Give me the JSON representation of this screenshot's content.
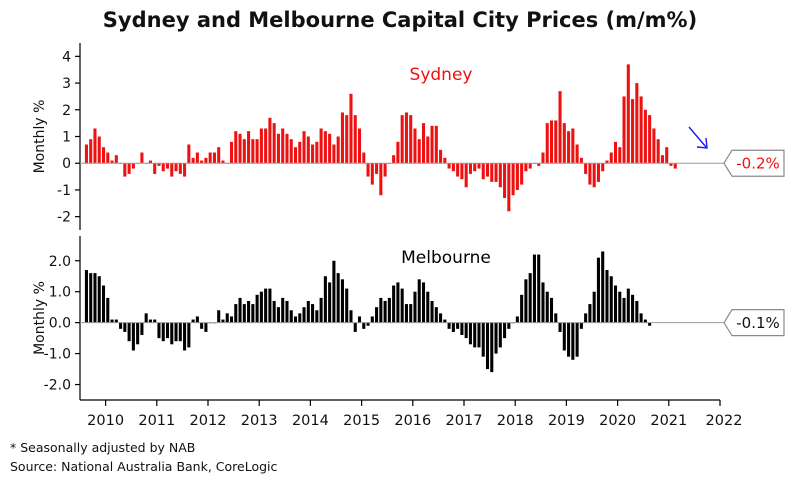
{
  "title": "Sydney and Melbourne Capital City Prices (m/m%)",
  "footnotes": [
    "* Seasonally adjusted by NAB",
    "Source: National Australia Bank, CoreLogic"
  ],
  "colors": {
    "sydney": "#ee1111",
    "melbourne": "#000000",
    "arrow": "#1a1aee",
    "axis": "#000000",
    "zero_line": "#9a9a9a"
  },
  "chart_data": [
    {
      "type": "bar",
      "series_name": "Sydney",
      "ylabel": "Monthly %",
      "ylim": [
        -2.5,
        4.5
      ],
      "yticks": [
        -2,
        -1,
        0,
        1,
        2,
        3,
        4
      ],
      "ytick_labels": [
        "-2",
        "-1",
        "0",
        "1",
        "2",
        "3",
        "4"
      ],
      "x_start": "2009-08",
      "latest_value_label": "-0.2%",
      "values": [
        0.7,
        0.9,
        1.3,
        1.0,
        0.6,
        0.4,
        0.1,
        0.3,
        0.0,
        -0.5,
        -0.4,
        -0.2,
        0.0,
        0.4,
        0.0,
        0.1,
        -0.4,
        -0.1,
        -0.3,
        -0.2,
        -0.5,
        -0.3,
        -0.4,
        -0.5,
        0.7,
        0.2,
        0.4,
        0.1,
        0.2,
        0.4,
        0.4,
        0.6,
        0.1,
        0.0,
        0.8,
        1.2,
        1.1,
        0.9,
        1.2,
        0.9,
        0.9,
        1.3,
        1.3,
        1.7,
        1.5,
        1.1,
        1.3,
        1.1,
        0.9,
        0.6,
        0.8,
        1.2,
        1.0,
        0.7,
        0.8,
        1.3,
        1.2,
        1.1,
        0.7,
        1.0,
        1.9,
        1.8,
        2.6,
        1.8,
        1.3,
        0.4,
        -0.5,
        -0.8,
        -0.4,
        -1.2,
        -0.5,
        0.0,
        0.3,
        0.8,
        1.8,
        1.9,
        1.8,
        1.3,
        0.9,
        1.5,
        1.0,
        1.4,
        1.4,
        0.5,
        0.2,
        -0.2,
        -0.3,
        -0.5,
        -0.6,
        -0.9,
        -0.4,
        -0.3,
        -0.2,
        -0.6,
        -0.5,
        -0.7,
        -0.7,
        -0.9,
        -1.3,
        -1.8,
        -1.2,
        -1.0,
        -0.8,
        -0.3,
        -0.2,
        0.0,
        -0.1,
        0.4,
        1.5,
        1.6,
        1.6,
        2.7,
        1.5,
        1.2,
        1.3,
        0.7,
        0.2,
        -0.4,
        -0.8,
        -0.9,
        -0.7,
        -0.3,
        0.1,
        0.4,
        0.8,
        0.6,
        2.5,
        3.7,
        2.4,
        3.0,
        2.5,
        2.0,
        1.8,
        1.3,
        0.9,
        0.3,
        0.6,
        -0.1,
        -0.2
      ]
    },
    {
      "type": "bar",
      "series_name": "Melbourne",
      "ylabel": "Monthly %",
      "ylim": [
        -2.5,
        2.8
      ],
      "yticks": [
        -2,
        -1,
        0,
        1,
        2
      ],
      "ytick_labels": [
        "-2.0",
        "-1.0",
        "0.0",
        "1.0",
        "2.0"
      ],
      "x_start": "2009-08",
      "latest_value_label": "-0.1%",
      "values": [
        1.7,
        1.6,
        1.6,
        1.5,
        1.2,
        0.8,
        0.1,
        0.1,
        -0.2,
        -0.3,
        -0.6,
        -0.9,
        -0.7,
        -0.4,
        0.3,
        0.1,
        0.1,
        -0.5,
        -0.6,
        -0.5,
        -0.7,
        -0.6,
        -0.6,
        -0.9,
        -0.8,
        0.1,
        0.2,
        -0.2,
        -0.3,
        0.0,
        0.0,
        0.4,
        0.1,
        0.3,
        0.2,
        0.6,
        0.8,
        0.6,
        0.7,
        0.6,
        0.9,
        1.0,
        1.1,
        1.1,
        0.7,
        0.5,
        0.8,
        0.7,
        0.4,
        0.2,
        0.3,
        0.5,
        0.7,
        0.6,
        0.4,
        0.8,
        1.5,
        1.3,
        2.0,
        1.6,
        1.4,
        1.1,
        0.4,
        -0.3,
        0.2,
        -0.2,
        -0.1,
        0.2,
        0.5,
        0.8,
        0.7,
        0.8,
        1.2,
        1.3,
        1.1,
        0.6,
        0.6,
        1.0,
        1.4,
        1.3,
        1.0,
        0.7,
        0.5,
        0.3,
        0.1,
        -0.2,
        -0.3,
        -0.2,
        -0.4,
        -0.5,
        -0.7,
        -0.8,
        -0.8,
        -1.1,
        -1.5,
        -1.6,
        -1.0,
        -0.8,
        -0.5,
        -0.2,
        0.0,
        0.2,
        0.9,
        1.4,
        1.6,
        2.2,
        2.2,
        1.3,
        1.0,
        0.8,
        0.3,
        -0.3,
        -0.9,
        -1.1,
        -1.2,
        -1.1,
        -0.2,
        0.3,
        0.6,
        1.0,
        2.1,
        2.3,
        1.7,
        1.5,
        1.2,
        1.0,
        0.8,
        1.1,
        0.9,
        0.7,
        0.3,
        0.1,
        -0.1
      ]
    }
  ],
  "x_axis": {
    "years": [
      "2010",
      "2011",
      "2012",
      "2013",
      "2014",
      "2015",
      "2016",
      "2017",
      "2018",
      "2019",
      "2020",
      "2021",
      "2022"
    ]
  }
}
